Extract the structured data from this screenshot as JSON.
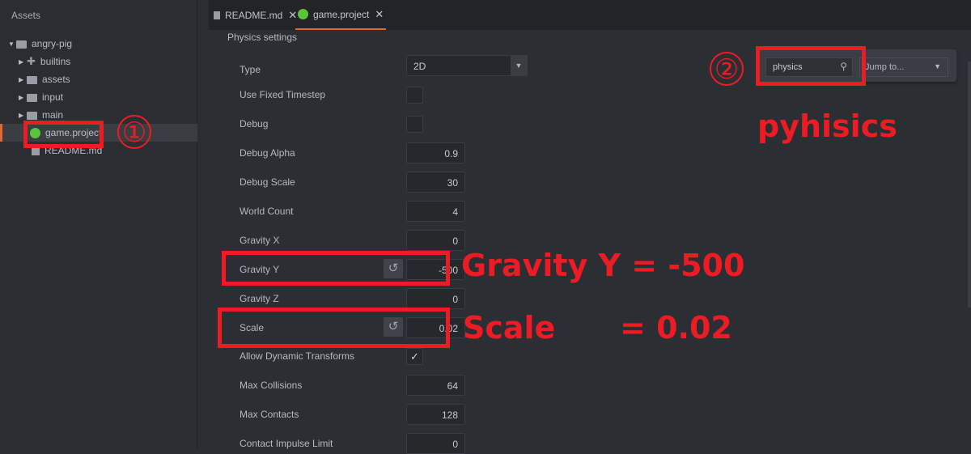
{
  "sidebar": {
    "title": "Assets",
    "items": [
      {
        "label": "angry-pig",
        "icon": "folder-icon",
        "expanded": true
      },
      {
        "label": "builtins",
        "icon": "puzzle-icon"
      },
      {
        "label": "assets",
        "icon": "folder-icon"
      },
      {
        "label": "input",
        "icon": "folder-icon"
      },
      {
        "label": "main",
        "icon": "folder-icon"
      },
      {
        "label": "game.project",
        "icon": "gear-icon",
        "selected": true
      },
      {
        "label": "README.md",
        "icon": "file-icon"
      }
    ]
  },
  "tabs": [
    {
      "label": "README.md",
      "close": "✕"
    },
    {
      "label": "game.project",
      "close": "✕",
      "active": true
    }
  ],
  "section_title": "Physics settings",
  "fields": {
    "type": {
      "label": "Type",
      "value": "2D"
    },
    "use_fixed_timestep": {
      "label": "Use Fixed Timestep",
      "checked": false
    },
    "debug": {
      "label": "Debug",
      "checked": false
    },
    "debug_alpha": {
      "label": "Debug Alpha",
      "value": "0.9"
    },
    "debug_scale": {
      "label": "Debug Scale",
      "value": "30"
    },
    "world_count": {
      "label": "World Count",
      "value": "4"
    },
    "gravity_x": {
      "label": "Gravity X",
      "value": "0"
    },
    "gravity_y": {
      "label": "Gravity Y",
      "value": "-500"
    },
    "gravity_z": {
      "label": "Gravity Z",
      "value": "0"
    },
    "scale": {
      "label": "Scale",
      "value": "0.02"
    },
    "allow_dynamic_transforms": {
      "label": "Allow Dynamic Transforms",
      "checked": true,
      "mark": "✓"
    },
    "max_collisions": {
      "label": "Max Collisions",
      "value": "64"
    },
    "max_contacts": {
      "label": "Max Contacts",
      "value": "128"
    },
    "contact_impulse_limit": {
      "label": "Contact Impulse Limit",
      "value": "0"
    }
  },
  "search": {
    "value": "physics",
    "jump_label": "Jump to..."
  },
  "annotations": {
    "circle1": "①",
    "circle2": "②",
    "search_note": "pyhisics",
    "gravity_note": "Gravity Y = -500",
    "scale_note_a": "Scale",
    "scale_note_b": "= 0.02",
    "color": "#ed1c24"
  },
  "colors": {
    "accent": "#e0692c",
    "gear": "#5cc43a"
  }
}
